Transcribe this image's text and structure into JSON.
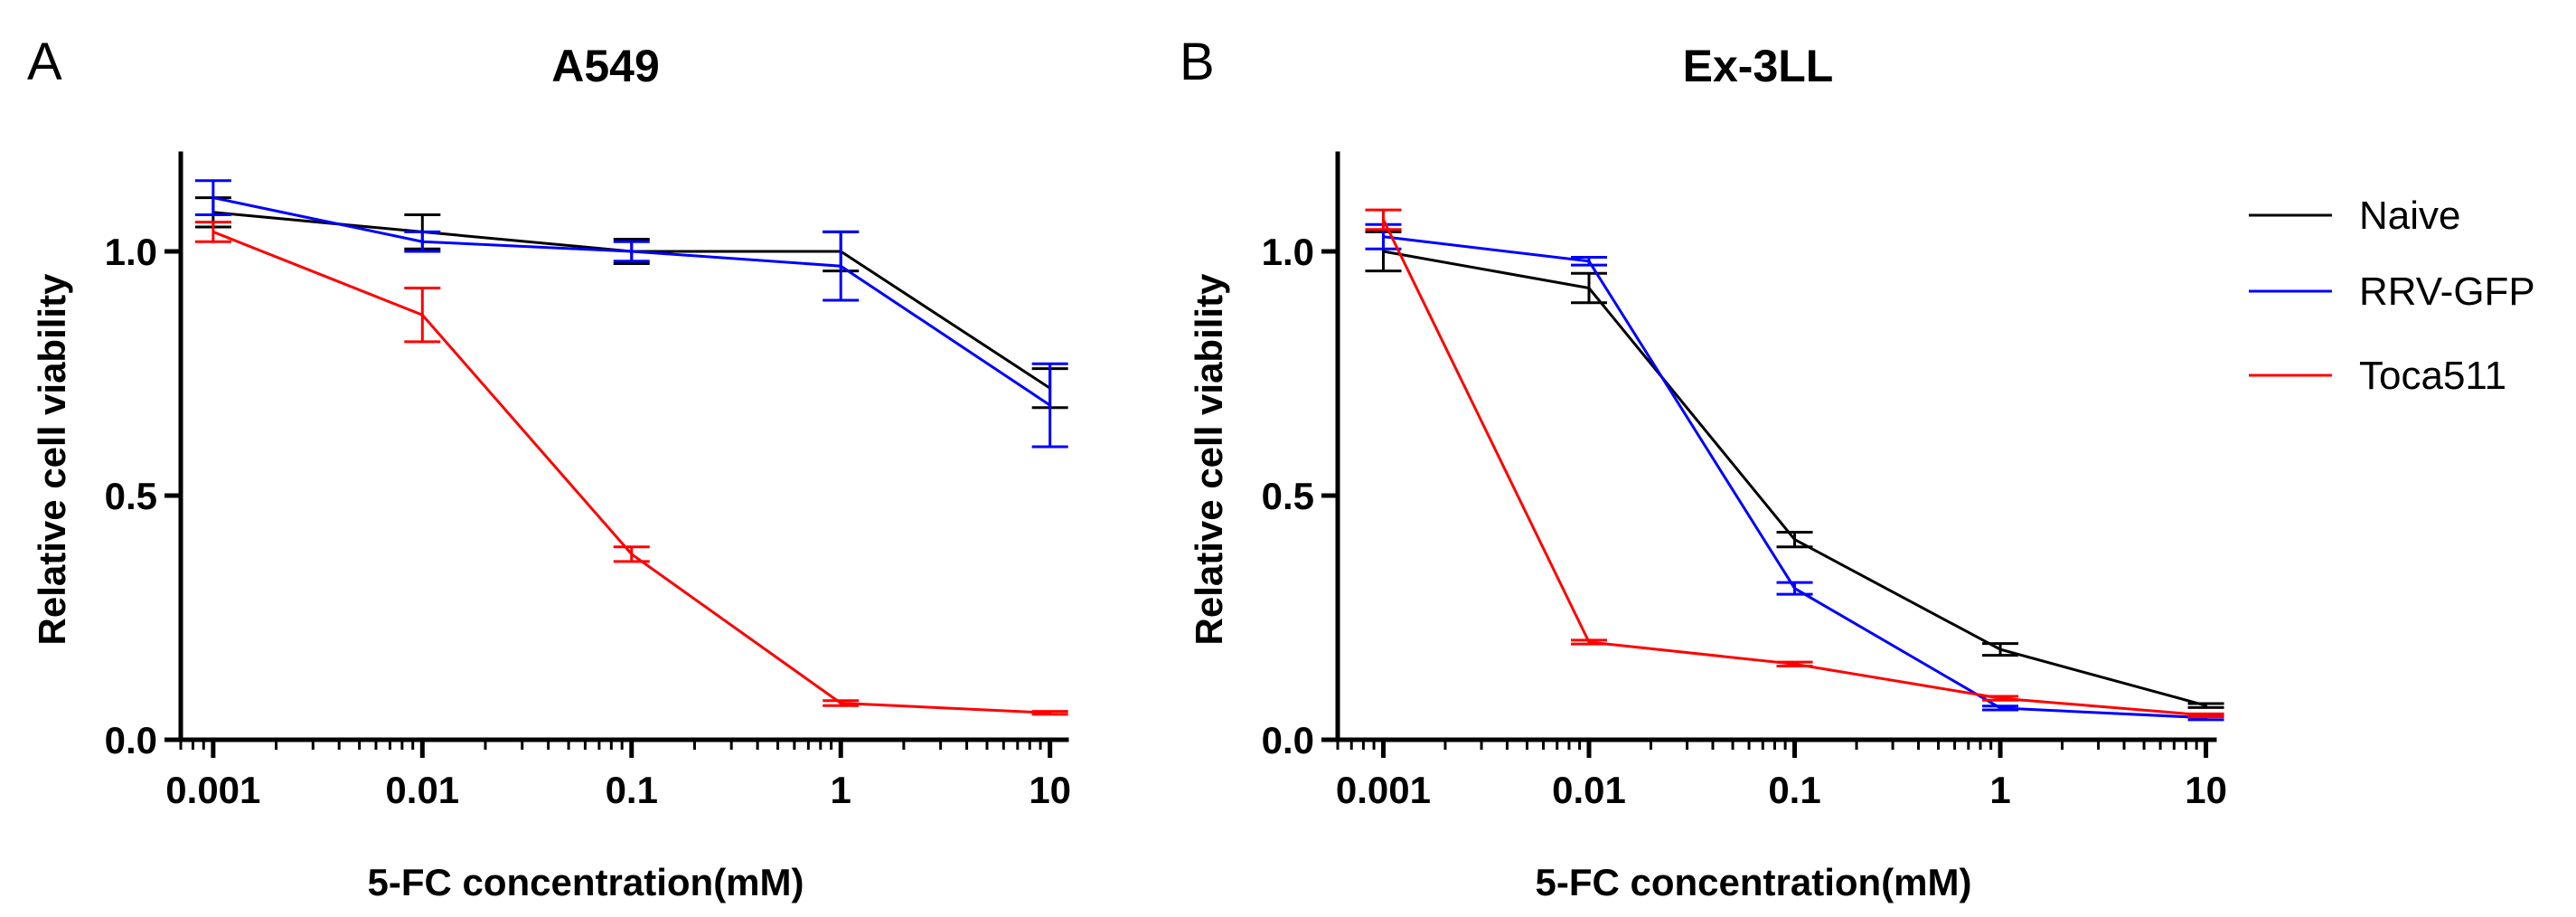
{
  "chart_data": [
    {
      "type": "line",
      "panel_label": "A",
      "title": "A549",
      "xlabel": "5-FC concentration(mM)",
      "ylabel": "Relative cell viability",
      "xscale": "log",
      "xlim": [
        0.0007,
        12
      ],
      "ylim": [
        0,
        1.2
      ],
      "x": [
        0.001,
        0.01,
        0.1,
        1,
        10
      ],
      "x_tick_labels": [
        "0.001",
        "0.01",
        "0.1",
        "1",
        "10"
      ],
      "y_ticks": [
        0.0,
        0.5,
        1.0
      ],
      "y_tick_labels": [
        "0.0",
        "0.5",
        "1.0"
      ],
      "series": [
        {
          "name": "Naive",
          "color": "#000000",
          "values": [
            1.08,
            1.04,
            1.0,
            1.0,
            0.72
          ],
          "errors": [
            0.03,
            0.035,
            0.025,
            0.04,
            0.04
          ]
        },
        {
          "name": "RRV-GFP",
          "color": "#0000ff",
          "values": [
            1.11,
            1.02,
            1.0,
            0.97,
            0.685
          ],
          "errors": [
            0.035,
            0.02,
            0.02,
            0.07,
            0.085
          ]
        },
        {
          "name": "Toca511",
          "color": "#ff0000",
          "values": [
            1.04,
            0.87,
            0.38,
            0.075,
            0.055
          ],
          "errors": [
            0.02,
            0.055,
            0.015,
            0.005,
            0.003
          ]
        }
      ]
    },
    {
      "type": "line",
      "panel_label": "B",
      "title": "Ex-3LL",
      "xlabel": "5-FC concentration(mM)",
      "ylabel": "Relative cell viability",
      "xscale": "log",
      "xlim": [
        0.0006,
        11
      ],
      "ylim": [
        0,
        1.2
      ],
      "x": [
        0.001,
        0.01,
        0.1,
        1,
        10
      ],
      "x_tick_labels": [
        "0.001",
        "0.01",
        "0.1",
        "1",
        "10"
      ],
      "y_ticks": [
        0.0,
        0.5,
        1.0
      ],
      "y_tick_labels": [
        "0.0",
        "0.5",
        "1.0"
      ],
      "series": [
        {
          "name": "Naive",
          "color": "#000000",
          "values": [
            1.0,
            0.925,
            0.41,
            0.185,
            0.07
          ],
          "errors": [
            0.04,
            0.03,
            0.015,
            0.012,
            0.004
          ]
        },
        {
          "name": "RRV-GFP",
          "color": "#0000ff",
          "values": [
            1.03,
            0.98,
            0.31,
            0.065,
            0.045
          ],
          "errors": [
            0.025,
            0.008,
            0.012,
            0.004,
            0.004
          ]
        },
        {
          "name": "Toca511",
          "color": "#ff0000",
          "values": [
            1.065,
            0.2,
            0.155,
            0.085,
            0.05
          ],
          "errors": [
            0.02,
            0.004,
            0.004,
            0.004,
            0.003
          ]
        }
      ]
    }
  ],
  "legend": {
    "placement": "right",
    "items": [
      {
        "label": "Naive",
        "color": "#000000"
      },
      {
        "label": "RRV-GFP",
        "color": "#0000ff"
      },
      {
        "label": "Toca511",
        "color": "#ff0000"
      }
    ]
  }
}
